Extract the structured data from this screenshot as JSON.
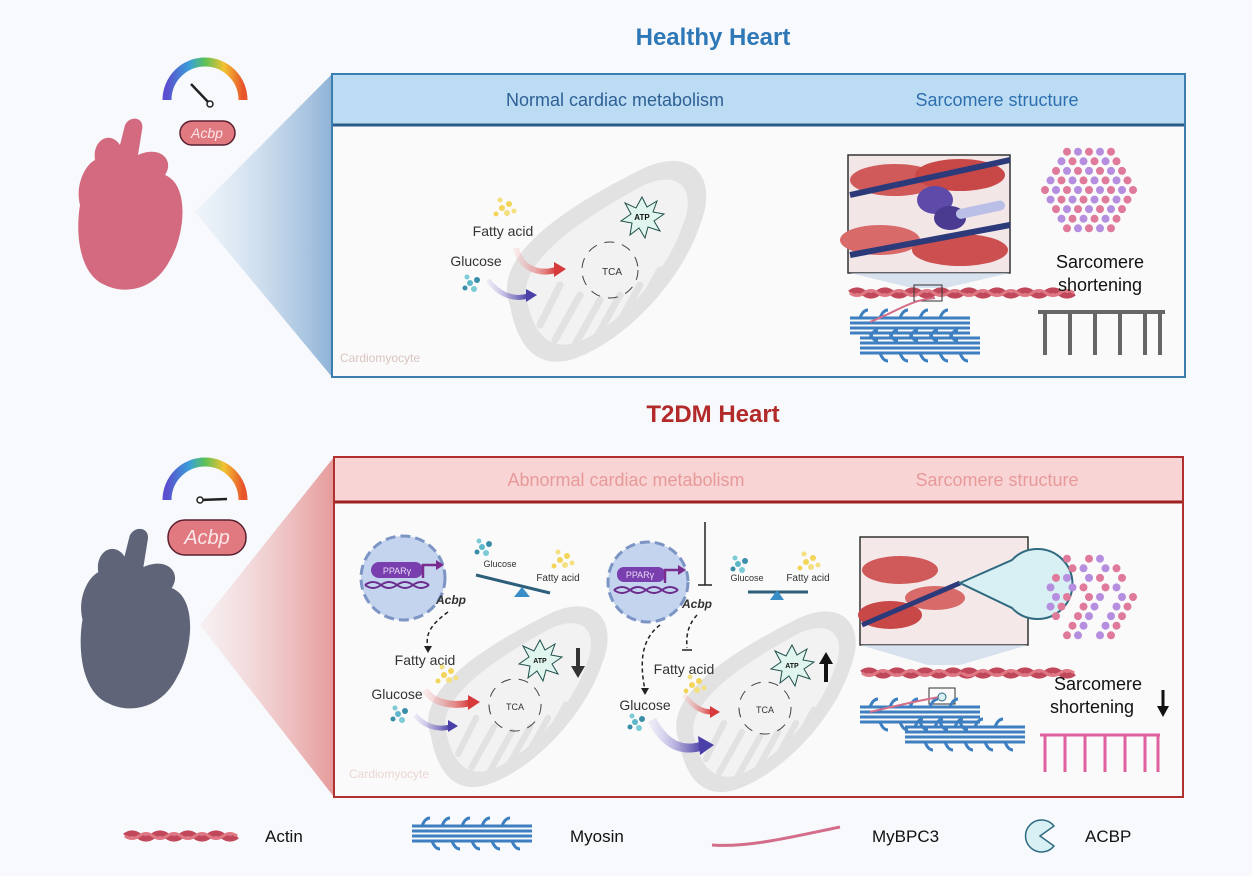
{
  "healthy": {
    "title": "Healthy Heart",
    "gene_label": "Acbp",
    "panel_left_title": "Normal cardiac metabolism",
    "panel_right_title": "Sarcomere structure",
    "fatty_acid": "Fatty acid",
    "glucose": "Glucose",
    "tca": "TCA",
    "atp": "ATP",
    "cell_label": "Cardiomyocyte",
    "sarcomere_text_1": "Sarcomere",
    "sarcomere_text_2": "shortening"
  },
  "t2dm": {
    "title": "T2DM Heart",
    "gene_label": "Acbp",
    "panel_left_title": "Abnormal cardiac metabolism",
    "panel_right_title": "Sarcomere structure",
    "pparg": "PPARγ",
    "acbp": "Acbp",
    "glucose": "Glucose",
    "fatty_acid": "Fatty acid",
    "tca": "TCA",
    "atp": "ATP",
    "cell_label": "Cardiomyocyte",
    "sarcomere_text_1": "Sarcomere",
    "sarcomere_text_2": "shortening"
  },
  "legend": [
    {
      "label": "Actin"
    },
    {
      "label": "Myosin"
    },
    {
      "label": "MyBPC3"
    },
    {
      "label": "ACBP"
    }
  ],
  "colors": {
    "healthy_accent": "#2e78b7",
    "t2dm_accent": "#b22a2a",
    "healthy_header": "#bcdcf3",
    "t2dm_header": "#f8d4d4"
  }
}
